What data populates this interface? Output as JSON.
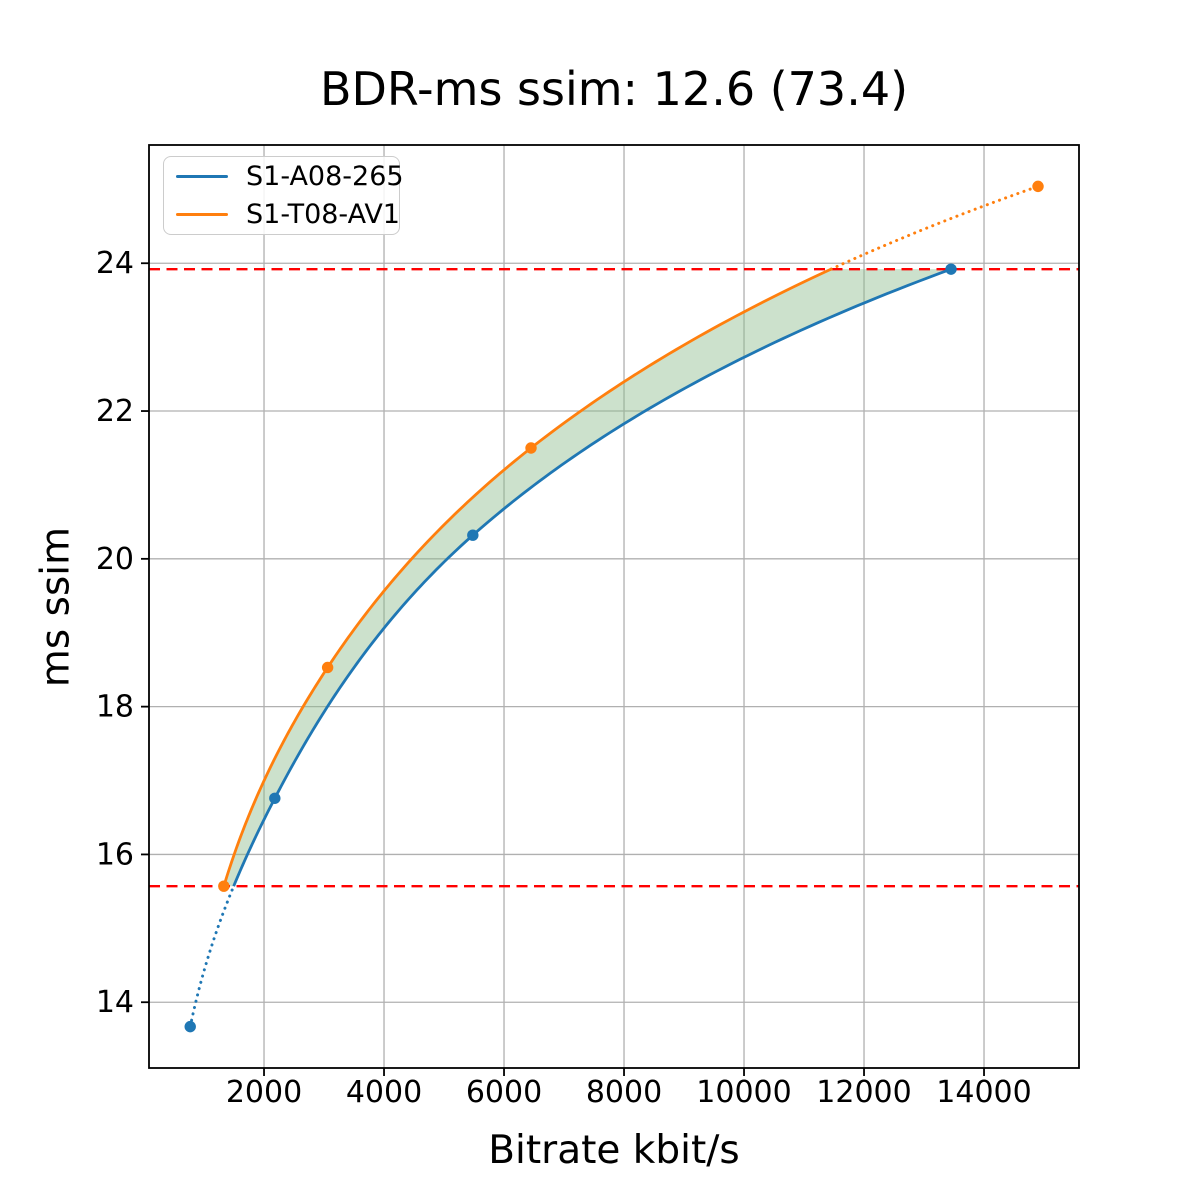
{
  "chart_data": {
    "type": "line",
    "title": "BDR-ms ssim: 12.6 (73.4)",
    "xlabel": "Bitrate kbit/s",
    "ylabel": "ms ssim",
    "xlim": [
      83,
      15583
    ],
    "ylim": [
      13.11,
      25.6
    ],
    "xticks": [
      2000,
      4000,
      6000,
      8000,
      10000,
      12000,
      14000
    ],
    "yticks": [
      14,
      16,
      18,
      20,
      22,
      24
    ],
    "grid": true,
    "grid_color": "#b0b0b0",
    "axis_color": "#000000",
    "legend_position": "upper-left",
    "interpolation": "monotone-cubic-log-x",
    "series": [
      {
        "name": "S1-A08-265",
        "color": "#1f77b4",
        "marker": "circle",
        "x": [
          770,
          2180,
          5480,
          13450
        ],
        "y": [
          13.67,
          16.76,
          20.32,
          23.92
        ]
      },
      {
        "name": "S1-T08-AV1",
        "color": "#ff7f0e",
        "marker": "circle",
        "x": [
          1330,
          3060,
          6450,
          14900
        ],
        "y": [
          15.57,
          18.53,
          21.5,
          25.04
        ]
      }
    ],
    "overlap_bounds": {
      "color": "#ff0000",
      "style": "dashed",
      "values": [
        15.57,
        23.92
      ]
    },
    "fill_between": {
      "color": "#8fbc8f",
      "alpha": 0.45
    }
  }
}
